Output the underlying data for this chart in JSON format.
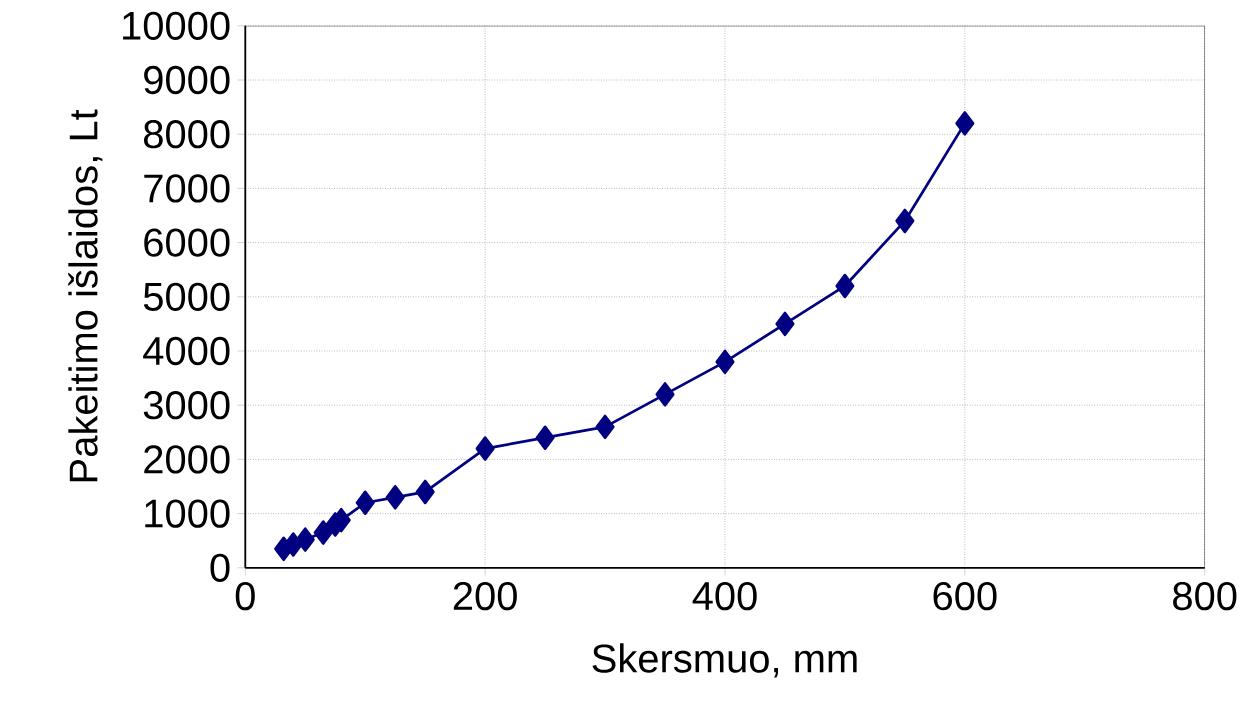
{
  "chart_data": {
    "type": "line",
    "xlabel": "Skersmuo, mm",
    "ylabel": "Pakeitimo išlaidos, Lt",
    "x": [
      32,
      40,
      50,
      65,
      75,
      80,
      100,
      125,
      150,
      200,
      250,
      300,
      350,
      400,
      450,
      500,
      550,
      600
    ],
    "values": [
      350,
      430,
      520,
      650,
      800,
      880,
      1200,
      1300,
      1400,
      2200,
      2400,
      2600,
      3200,
      3800,
      4500,
      5200,
      6400,
      8200
    ],
    "color": "#000080",
    "marker": "diamond",
    "line_style": "solid",
    "xlim": [
      0,
      800
    ],
    "xticks": [
      0,
      200,
      400,
      600,
      800
    ],
    "ylim": [
      0,
      10000
    ],
    "yticks": [
      0,
      1000,
      2000,
      3000,
      4000,
      5000,
      6000,
      7000,
      8000,
      9000,
      10000
    ],
    "grid": true
  }
}
